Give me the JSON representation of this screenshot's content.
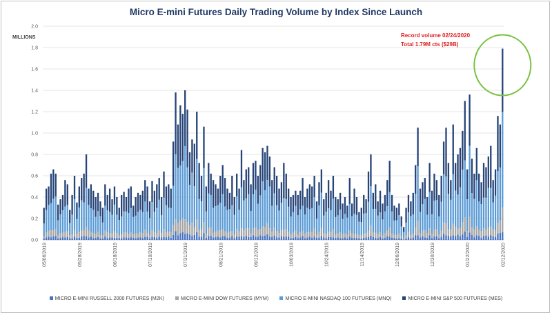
{
  "chart_data": {
    "type": "bar",
    "stacked": true,
    "title": "Micro E-mini Futures Daily Trading Volume by Index Since Launch",
    "ylabel": "MILLIONS",
    "ylim": [
      0,
      2.0
    ],
    "yticks": [
      "0.0",
      "0.2",
      "0.4",
      "0.6",
      "0.8",
      "1.0",
      "1.2",
      "1.4",
      "1.6",
      "1.8",
      "2.0"
    ],
    "xtick_labels": [
      "05/06/2019",
      "05/28/2019",
      "06/18/2019",
      "07/10/2019",
      "07/31/2019",
      "08/21/2019",
      "09/12/2019",
      "10/03/2019",
      "10/24/2019",
      "11/14/2019",
      "12/06/2019",
      "12/30/2019",
      "01/22/2020",
      "02/12/2020"
    ],
    "xtick_positions": [
      0,
      15,
      30,
      45,
      60,
      75,
      90,
      105,
      120,
      135,
      150,
      165,
      180,
      195
    ],
    "annotation": {
      "line1": "Record volume 02/24/2020",
      "line2": "Total 1.79M cts ($29B)",
      "value": 1.79,
      "color": "#e02020",
      "circle_color": "#7ac143"
    },
    "totals": [
      0.3,
      0.48,
      0.5,
      0.62,
      0.66,
      0.62,
      0.33,
      0.38,
      0.42,
      0.56,
      0.52,
      0.28,
      0.42,
      0.6,
      0.35,
      0.5,
      0.58,
      0.62,
      0.8,
      0.48,
      0.52,
      0.46,
      0.4,
      0.44,
      0.36,
      0.3,
      0.52,
      0.42,
      0.48,
      0.38,
      0.5,
      0.4,
      0.3,
      0.42,
      0.45,
      0.4,
      0.48,
      0.5,
      0.32,
      0.4,
      0.44,
      0.42,
      0.46,
      0.56,
      0.5,
      0.36,
      0.55,
      0.46,
      0.52,
      0.58,
      0.4,
      0.64,
      0.5,
      0.52,
      0.48,
      0.92,
      1.38,
      1.08,
      1.26,
      1.18,
      1.4,
      1.22,
      0.82,
      0.94,
      0.9,
      1.2,
      0.72,
      0.6,
      1.06,
      0.5,
      0.72,
      0.62,
      0.56,
      0.52,
      0.48,
      0.6,
      0.7,
      0.58,
      0.48,
      0.44,
      0.6,
      0.4,
      0.62,
      0.48,
      0.84,
      0.56,
      0.66,
      0.68,
      0.52,
      0.72,
      0.74,
      0.6,
      0.7,
      0.86,
      0.82,
      0.88,
      0.78,
      0.56,
      0.68,
      0.6,
      0.48,
      0.54,
      0.72,
      0.62,
      0.48,
      0.4,
      0.42,
      0.46,
      0.42,
      0.46,
      0.58,
      0.4,
      0.48,
      0.52,
      0.5,
      0.6,
      0.36,
      0.54,
      0.66,
      0.38,
      0.44,
      0.56,
      0.46,
      0.6,
      0.4,
      0.38,
      0.44,
      0.34,
      0.4,
      0.32,
      0.58,
      0.34,
      0.48,
      0.4,
      0.26,
      0.3,
      0.42,
      0.38,
      0.64,
      0.8,
      0.44,
      0.52,
      0.36,
      0.46,
      0.34,
      0.42,
      0.56,
      0.74,
      0.42,
      0.32,
      0.3,
      0.34,
      0.22,
      0.12,
      0.3,
      0.42,
      0.36,
      0.44,
      0.7,
      1.05,
      0.48,
      0.54,
      0.58,
      0.4,
      0.72,
      0.46,
      0.62,
      0.56,
      0.42,
      0.6,
      0.92,
      1.05,
      0.72,
      0.56,
      1.08,
      0.72,
      0.8,
      0.86,
      1.02,
      1.3,
      0.66,
      1.36,
      0.76,
      0.62,
      0.86,
      0.62,
      0.54,
      0.72,
      0.68,
      0.78,
      0.88,
      0.56,
      0.66,
      1.16,
      1.08,
      1.79
    ],
    "series": [
      {
        "name": "MICRO E-MINI RUSSELL 2000 FUTURES (M2K)",
        "color": "#4472c4"
      },
      {
        "name": "MICRO E-MINI DOW FUTURES (MYM)",
        "color": "#a5a5a5"
      },
      {
        "name": "MICRO E-MINI NASDAQ 100 FUTURES (MNQ)",
        "color": "#5b9bd5"
      },
      {
        "name": "MICRO E-MINI S&P 500 FUTURES (MES)",
        "color": "#264478"
      }
    ]
  }
}
